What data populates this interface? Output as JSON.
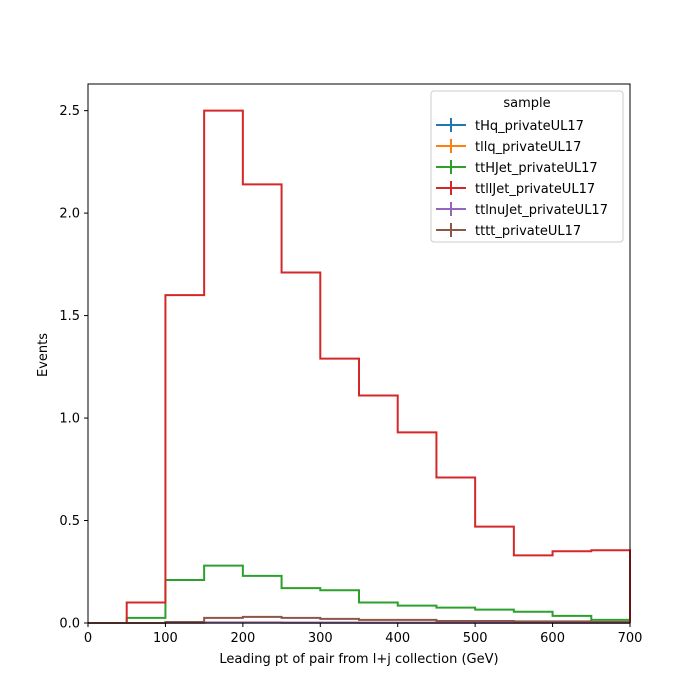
{
  "chart_data": {
    "type": "step",
    "xlabel": "Leading pt of pair from l+j collection (GeV)",
    "ylabel": "Events",
    "xlim": [
      0,
      700
    ],
    "ylim": [
      0,
      2.63
    ],
    "xticks": [
      0,
      100,
      200,
      300,
      400,
      500,
      600,
      700
    ],
    "yticks": [
      0.0,
      0.5,
      1.0,
      1.5,
      2.0,
      2.5
    ],
    "xtick_labels": [
      "0",
      "100",
      "200",
      "300",
      "400",
      "500",
      "600",
      "700"
    ],
    "ytick_labels": [
      "0.0",
      "0.5",
      "1.0",
      "1.5",
      "2.0",
      "2.5"
    ],
    "bin_edges": [
      0,
      50,
      100,
      150,
      200,
      250,
      300,
      350,
      400,
      450,
      500,
      550,
      600,
      650,
      700
    ],
    "legend": {
      "title": "sample",
      "position": "top-right"
    },
    "grid": false,
    "series": [
      {
        "name": "tHq_privateUL17",
        "color": "#1f77b4",
        "values": [
          0,
          0,
          0.001,
          0.002,
          0.002,
          0.001,
          0.001,
          0.001,
          0.001,
          0.001,
          0.0005,
          0.0005,
          0.0005,
          0.0005
        ]
      },
      {
        "name": "tllq_privateUL17",
        "color": "#ff7f0e",
        "values": [
          0,
          0,
          0.002,
          0.003,
          0.003,
          0.002,
          0.002,
          0.002,
          0.001,
          0.001,
          0.001,
          0.001,
          0.001,
          0.001
        ]
      },
      {
        "name": "ttHJet_privateUL17",
        "color": "#2ca02c",
        "values": [
          0,
          0.025,
          0.21,
          0.28,
          0.23,
          0.17,
          0.16,
          0.1,
          0.085,
          0.075,
          0.065,
          0.055,
          0.035,
          0.015
        ]
      },
      {
        "name": "ttllJet_privateUL17",
        "color": "#d62728",
        "values": [
          0,
          0.1,
          1.6,
          2.5,
          2.14,
          1.71,
          1.29,
          1.11,
          0.93,
          0.71,
          0.47,
          0.33,
          0.35,
          0.355
        ]
      },
      {
        "name": "ttlnuJet_privateUL17",
        "color": "#9467bd",
        "values": [
          0,
          0,
          0.001,
          0.002,
          0.002,
          0.002,
          0.002,
          0.001,
          0.001,
          0.001,
          0.001,
          0.001,
          0.0005,
          0.0005
        ]
      },
      {
        "name": "tttt_privateUL17",
        "color": "#8c564b",
        "values": [
          0,
          0,
          0.005,
          0.025,
          0.03,
          0.025,
          0.02,
          0.015,
          0.015,
          0.01,
          0.01,
          0.008,
          0.008,
          0.005
        ]
      }
    ]
  }
}
